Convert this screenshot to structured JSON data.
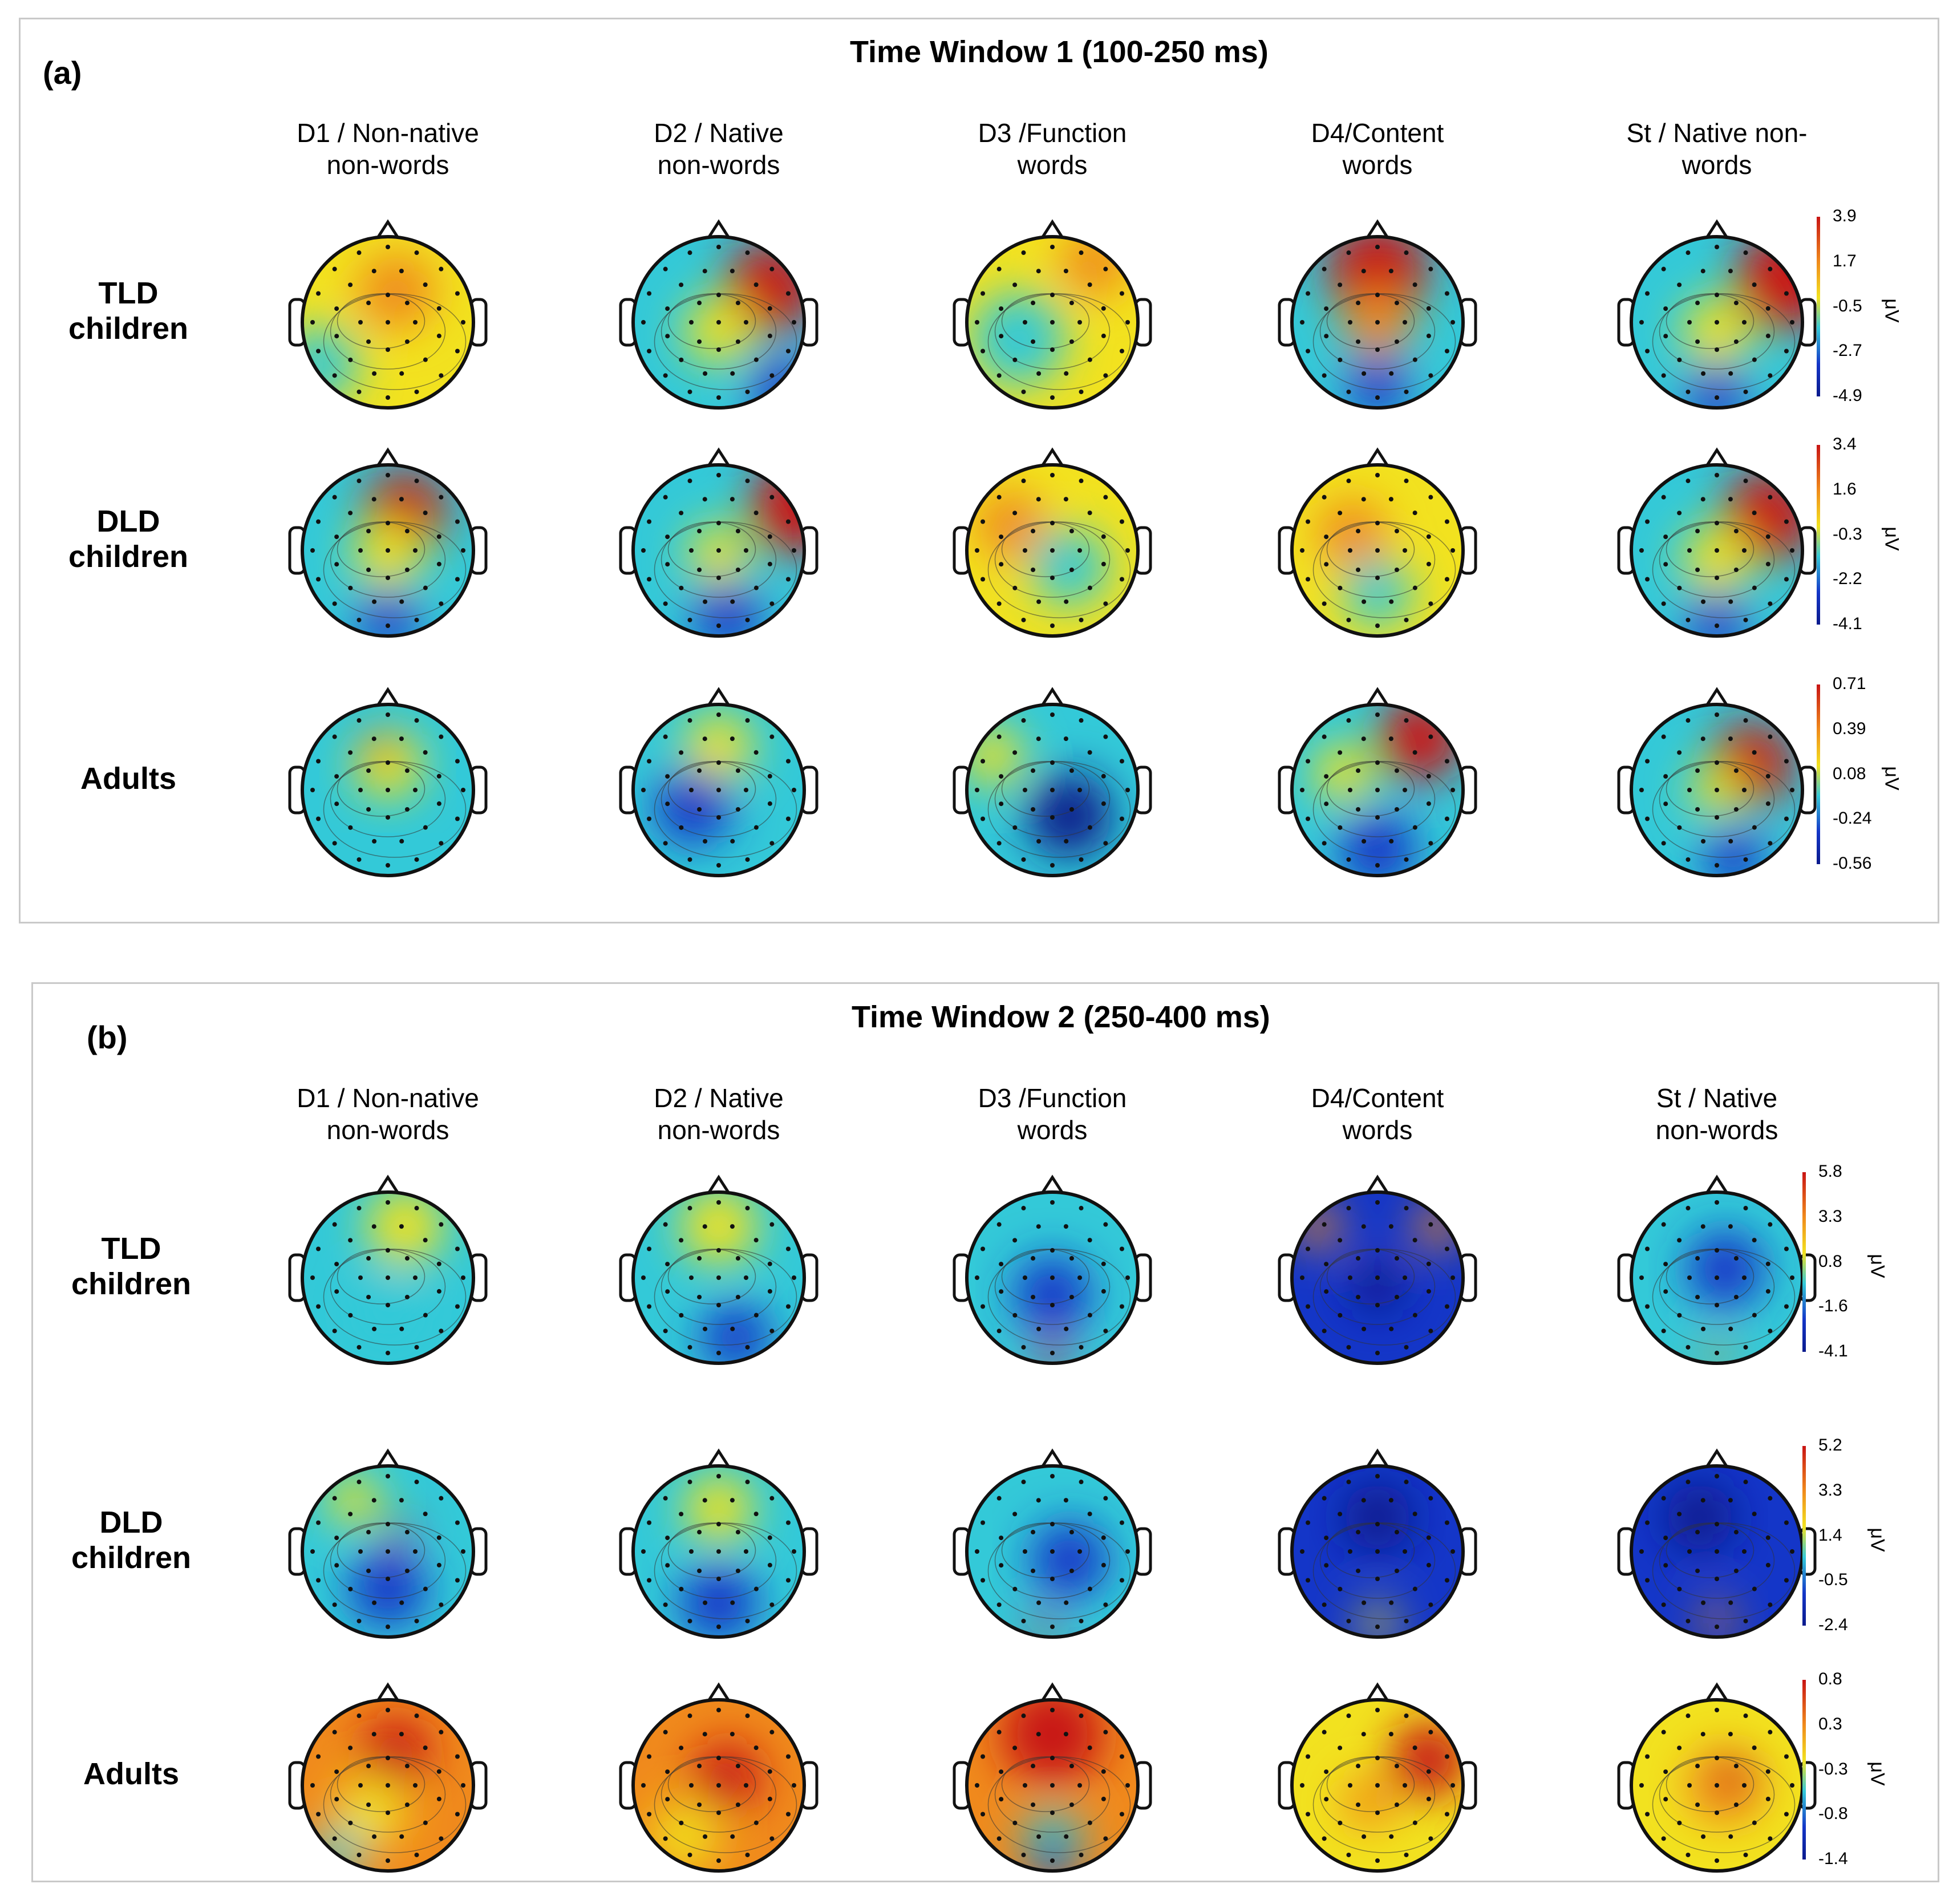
{
  "panels": [
    {
      "letter": "(a)",
      "title": "Time Window 1 (100-250 ms)",
      "conditions": [
        {
          "line1": "D1 / Non-native",
          "line2": "non-words"
        },
        {
          "line1": "D2 / Native",
          "line2": "non-words"
        },
        {
          "line1": "D3 /Function",
          "line2": "words"
        },
        {
          "line1": "D4/Content",
          "line2": "words"
        },
        {
          "line1": "St / Native non-",
          "line2": "words"
        }
      ],
      "groups": [
        {
          "line1": "TLD",
          "line2": "children",
          "scale": [
            "3.9",
            "1.7",
            "-0.5",
            "-2.7",
            "-4.9"
          ],
          "unit": "μV"
        },
        {
          "line1": "DLD",
          "line2": "children",
          "scale": [
            "3.4",
            "1.6",
            "-0.3",
            "-2.2",
            "-4.1"
          ],
          "unit": "μV"
        },
        {
          "line1": "Adults",
          "line2": "",
          "scale": [
            "0.71",
            "0.39",
            "0.08",
            "-0.24",
            "-0.56"
          ],
          "unit": "μV"
        }
      ]
    },
    {
      "letter": "(b)",
      "title": "Time Window 2 (250-400 ms)",
      "conditions": [
        {
          "line1": "D1 / Non-native",
          "line2": "non-words"
        },
        {
          "line1": "D2 / Native",
          "line2": "non-words"
        },
        {
          "line1": "D3 /Function",
          "line2": "words"
        },
        {
          "line1": "D4/Content",
          "line2": "words"
        },
        {
          "line1": "St / Native",
          "line2": "non-words"
        }
      ],
      "groups": [
        {
          "line1": "TLD",
          "line2": "children",
          "scale": [
            "5.8",
            "3.3",
            "0.8",
            "-1.6",
            "-4.1"
          ],
          "unit": "μV"
        },
        {
          "line1": "DLD",
          "line2": "children",
          "scale": [
            "5.2",
            "3.3",
            "1.4",
            "-0.5",
            "-2.4"
          ],
          "unit": "μV"
        },
        {
          "line1": "Adults",
          "line2": "",
          "scale": [
            "0.8",
            "0.3",
            "-0.3",
            "-0.8",
            "-1.4"
          ],
          "unit": "μV"
        }
      ]
    }
  ],
  "colors": {
    "red": "#c81414",
    "orange": "#f08a1c",
    "yellow": "#f2e21f",
    "cyan": "#33c9d8",
    "blue": "#1436c8",
    "darkblue": "#0a1a8c"
  },
  "maps": [
    [
      {
        "base": "yellow",
        "blobs": [
          [
            "orange",
            0.55,
            0.32,
            0.45
          ],
          [
            "cyan",
            0.1,
            0.75,
            0.45
          ]
        ]
      },
      {
        "base": "cyan",
        "blobs": [
          [
            "red",
            0.8,
            0.3,
            0.55
          ],
          [
            "yellow",
            0.5,
            0.55,
            0.4
          ],
          [
            "blue",
            0.85,
            0.88,
            0.35
          ]
        ]
      },
      {
        "base": "yellow",
        "blobs": [
          [
            "orange",
            0.75,
            0.15,
            0.4
          ],
          [
            "cyan",
            0.3,
            0.6,
            0.55
          ]
        ]
      },
      {
        "base": "cyan",
        "blobs": [
          [
            "red",
            0.5,
            0.2,
            0.6
          ],
          [
            "orange",
            0.5,
            0.5,
            0.4
          ],
          [
            "blue",
            0.5,
            0.88,
            0.35
          ]
        ]
      },
      {
        "base": "cyan",
        "blobs": [
          [
            "red",
            0.9,
            0.25,
            0.6
          ],
          [
            "yellow",
            0.5,
            0.55,
            0.4
          ],
          [
            "blue",
            0.5,
            0.92,
            0.35
          ]
        ]
      }
    ],
    [
      {
        "base": "cyan",
        "blobs": [
          [
            "red",
            0.6,
            0.28,
            0.5
          ],
          [
            "yellow",
            0.5,
            0.52,
            0.4
          ],
          [
            "blue",
            0.5,
            0.9,
            0.35
          ]
        ]
      },
      {
        "base": "cyan",
        "blobs": [
          [
            "red",
            0.95,
            0.25,
            0.55
          ],
          [
            "yellow",
            0.5,
            0.52,
            0.35
          ],
          [
            "blue",
            0.55,
            0.88,
            0.4
          ]
        ]
      },
      {
        "base": "yellow",
        "blobs": [
          [
            "orange",
            0.25,
            0.35,
            0.4
          ],
          [
            "cyan",
            0.6,
            0.6,
            0.45
          ]
        ]
      },
      {
        "base": "yellow",
        "blobs": [
          [
            "orange",
            0.35,
            0.4,
            0.4
          ],
          [
            "cyan",
            0.5,
            0.75,
            0.4
          ]
        ]
      },
      {
        "base": "cyan",
        "blobs": [
          [
            "red",
            0.8,
            0.3,
            0.55
          ],
          [
            "yellow",
            0.5,
            0.55,
            0.4
          ],
          [
            "blue",
            0.5,
            0.92,
            0.35
          ]
        ]
      }
    ],
    [
      {
        "base": "cyan",
        "blobs": [
          [
            "yellow",
            0.5,
            0.35,
            0.4
          ],
          [
            "orange",
            0.45,
            0.25,
            0.2
          ]
        ]
      },
      {
        "base": "cyan",
        "blobs": [
          [
            "yellow",
            0.5,
            0.25,
            0.4
          ],
          [
            "blue",
            0.35,
            0.6,
            0.45
          ]
        ]
      },
      {
        "base": "cyan",
        "blobs": [
          [
            "yellow",
            0.15,
            0.3,
            0.35
          ],
          [
            "darkblue",
            0.6,
            0.65,
            0.5
          ]
        ]
      },
      {
        "base": "cyan",
        "blobs": [
          [
            "red",
            0.75,
            0.2,
            0.5
          ],
          [
            "yellow",
            0.3,
            0.4,
            0.35
          ],
          [
            "blue",
            0.5,
            0.85,
            0.45
          ]
        ]
      },
      {
        "base": "cyan",
        "blobs": [
          [
            "red",
            0.7,
            0.35,
            0.5
          ],
          [
            "yellow",
            0.5,
            0.5,
            0.3
          ],
          [
            "blue",
            0.6,
            0.9,
            0.35
          ]
        ]
      }
    ],
    [
      {
        "base": "cyan",
        "blobs": [
          [
            "yellow",
            0.6,
            0.2,
            0.45
          ],
          [
            "cyan",
            0.5,
            0.7,
            0.4
          ]
        ]
      },
      {
        "base": "cyan",
        "blobs": [
          [
            "yellow",
            0.5,
            0.2,
            0.45
          ],
          [
            "blue",
            0.6,
            0.85,
            0.4
          ]
        ]
      },
      {
        "base": "cyan",
        "blobs": [
          [
            "blue",
            0.5,
            0.6,
            0.45
          ],
          [
            "red",
            0.5,
            0.96,
            0.18
          ]
        ]
      },
      {
        "base": "blue",
        "blobs": [
          [
            "orange",
            0.15,
            0.2,
            0.25
          ],
          [
            "orange",
            0.85,
            0.2,
            0.25
          ],
          [
            "darkblue",
            0.5,
            0.55,
            0.3
          ]
        ]
      },
      {
        "base": "cyan",
        "blobs": [
          [
            "blue",
            0.55,
            0.45,
            0.45
          ],
          [
            "orange",
            0.5,
            0.95,
            0.15
          ]
        ]
      }
    ],
    [
      {
        "base": "cyan",
        "blobs": [
          [
            "red",
            0.55,
            0.38,
            0.15
          ],
          [
            "blue",
            0.5,
            0.72,
            0.45
          ],
          [
            "yellow",
            0.3,
            0.2,
            0.3
          ]
        ]
      },
      {
        "base": "cyan",
        "blobs": [
          [
            "yellow",
            0.5,
            0.25,
            0.4
          ],
          [
            "blue",
            0.5,
            0.8,
            0.45
          ]
        ]
      },
      {
        "base": "cyan",
        "blobs": [
          [
            "blue",
            0.6,
            0.55,
            0.45
          ],
          [
            "red",
            0.45,
            0.96,
            0.15
          ]
        ]
      },
      {
        "base": "blue",
        "blobs": [
          [
            "darkblue",
            0.5,
            0.3,
            0.4
          ],
          [
            "yellow",
            0.5,
            0.92,
            0.2
          ]
        ]
      },
      {
        "base": "blue",
        "blobs": [
          [
            "darkblue",
            0.4,
            0.3,
            0.4
          ],
          [
            "orange",
            0.5,
            0.9,
            0.18
          ]
        ]
      }
    ],
    [
      {
        "base": "orange",
        "blobs": [
          [
            "red",
            0.55,
            0.3,
            0.4
          ],
          [
            "yellow",
            0.4,
            0.65,
            0.4
          ],
          [
            "cyan",
            0.2,
            0.9,
            0.3
          ]
        ]
      },
      {
        "base": "orange",
        "blobs": [
          [
            "red",
            0.55,
            0.45,
            0.4
          ],
          [
            "yellow",
            0.3,
            0.8,
            0.4
          ]
        ]
      },
      {
        "base": "orange",
        "blobs": [
          [
            "red",
            0.5,
            0.2,
            0.6
          ],
          [
            "cyan",
            0.5,
            0.82,
            0.35
          ],
          [
            "blue",
            0.5,
            0.95,
            0.25
          ]
        ]
      },
      {
        "base": "yellow",
        "blobs": [
          [
            "red",
            0.8,
            0.35,
            0.45
          ],
          [
            "orange",
            0.45,
            0.6,
            0.3
          ]
        ]
      },
      {
        "base": "yellow",
        "blobs": [
          [
            "orange",
            0.55,
            0.5,
            0.45
          ],
          [
            "red",
            0.6,
            0.45,
            0.2
          ]
        ]
      }
    ]
  ]
}
